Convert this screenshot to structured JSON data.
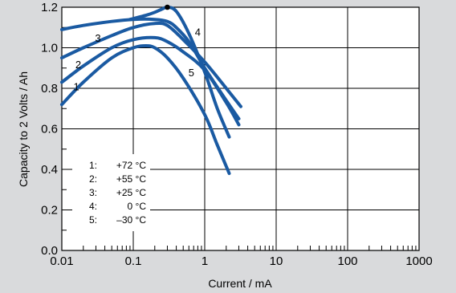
{
  "chart_data": {
    "type": "line",
    "title": "",
    "xlabel": "Current / mA",
    "ylabel": "Capacity to 2 Volts / Ah",
    "x_scale": "log",
    "xlim": [
      0.01,
      1000
    ],
    "ylim": [
      0.0,
      1.2
    ],
    "x_ticks": [
      0.01,
      0.1,
      1,
      10,
      100,
      1000
    ],
    "x_tick_labels": [
      "0.01",
      "0.1",
      "1",
      "10",
      "100",
      "1000"
    ],
    "y_ticks": [
      0.0,
      0.2,
      0.4,
      0.6,
      0.8,
      1.0,
      1.2
    ],
    "y_tick_labels": [
      "0.0",
      "0.2",
      "0.4",
      "0.6",
      "0.8",
      "1.0",
      "1.2"
    ],
    "grid": true,
    "series_color": "#1a5aa2",
    "background": "#d9dadc",
    "plot_background": "#ffffff",
    "legend": {
      "position": "bottom-left",
      "entries": [
        {
          "id": "1",
          "value": "+72 °C"
        },
        {
          "id": "2",
          "value": "+55 °C"
        },
        {
          "id": "3",
          "value": "+25 °C"
        },
        {
          "id": "4",
          "value": "0 °C"
        },
        {
          "id": "5",
          "value": "–30 °C"
        }
      ]
    },
    "series": [
      {
        "label": "1",
        "x": [
          0.01,
          0.02,
          0.05,
          0.1,
          0.15,
          0.2,
          0.3,
          0.5,
          1.0,
          1.5,
          2.2
        ],
        "y": [
          0.72,
          0.83,
          0.95,
          1.0,
          1.01,
          1.0,
          0.95,
          0.85,
          0.67,
          0.52,
          0.38
        ]
      },
      {
        "label": "2",
        "x": [
          0.01,
          0.02,
          0.05,
          0.1,
          0.2,
          0.3,
          0.5,
          1.0,
          2.0,
          3.0
        ],
        "y": [
          0.83,
          0.91,
          1.0,
          1.04,
          1.05,
          1.03,
          0.98,
          0.89,
          0.73,
          0.62
        ]
      },
      {
        "label": "3",
        "x": [
          0.01,
          0.02,
          0.05,
          0.1,
          0.2,
          0.3,
          0.5,
          1.0,
          2.0,
          3.2
        ],
        "y": [
          0.95,
          1.0,
          1.06,
          1.1,
          1.12,
          1.11,
          1.04,
          0.93,
          0.8,
          0.71
        ]
      },
      {
        "label": "4",
        "x": [
          0.01,
          0.02,
          0.05,
          0.1,
          0.2,
          0.3,
          0.4,
          0.6,
          1.0,
          2.0,
          3.0
        ],
        "y": [
          1.09,
          1.11,
          1.13,
          1.14,
          1.14,
          1.13,
          1.1,
          1.03,
          0.9,
          0.74,
          0.65
        ]
      },
      {
        "label": "5",
        "x": [
          0.09,
          0.15,
          0.2,
          0.25,
          0.3,
          0.4,
          0.6,
          1.0,
          1.5,
          2.2
        ],
        "y": [
          1.14,
          1.16,
          1.175,
          1.19,
          1.2,
          1.18,
          1.07,
          0.88,
          0.7,
          0.56
        ]
      }
    ],
    "marker": {
      "x": 0.3,
      "y": 1.2
    },
    "curve_labels": [
      {
        "text": "1",
        "x": 0.016,
        "y": 0.79
      },
      {
        "text": "2",
        "x": 0.017,
        "y": 0.9
      },
      {
        "text": "3",
        "x": 0.032,
        "y": 1.03
      },
      {
        "text": "4",
        "x": 0.8,
        "y": 1.06
      },
      {
        "text": "5",
        "x": 0.65,
        "y": 0.86
      }
    ]
  }
}
